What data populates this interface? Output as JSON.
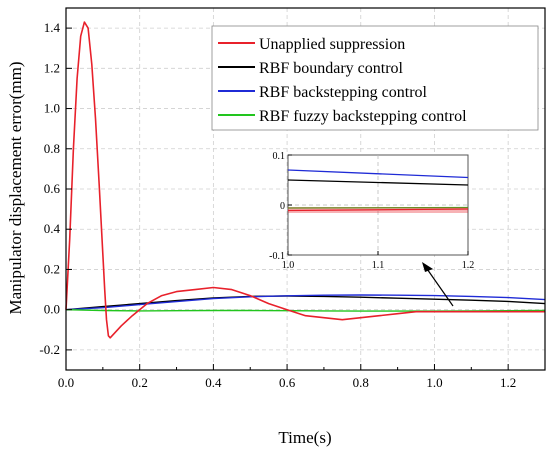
{
  "chart_data": {
    "type": "line",
    "xlabel": "Time(s)",
    "ylabel": "Manipulator displacement error(mm)",
    "xlim": [
      0,
      1.3
    ],
    "ylim": [
      -0.3,
      1.5
    ],
    "x_ticks": [
      "0.0",
      "0.2",
      "0.4",
      "0.6",
      "0.8",
      "1.0",
      "1.2"
    ],
    "y_ticks": [
      "-0.2",
      "0.0",
      "0.2",
      "0.4",
      "0.6",
      "0.8",
      "1.0",
      "1.2",
      "1.4"
    ],
    "grid": true,
    "legend_position": "top-right",
    "series": [
      {
        "name": "Unapplied suppression",
        "color": "#e8212b",
        "x": [
          0.0,
          0.01,
          0.02,
          0.03,
          0.04,
          0.05,
          0.06,
          0.07,
          0.08,
          0.09,
          0.1,
          0.105,
          0.11,
          0.115,
          0.12,
          0.13,
          0.15,
          0.18,
          0.22,
          0.26,
          0.3,
          0.35,
          0.4,
          0.45,
          0.5,
          0.55,
          0.6,
          0.65,
          0.7,
          0.75,
          0.8,
          0.85,
          0.9,
          0.95,
          1.0,
          1.05,
          1.1,
          1.15,
          1.2,
          1.25,
          1.3
        ],
        "y": [
          0.0,
          0.35,
          0.8,
          1.15,
          1.36,
          1.43,
          1.4,
          1.22,
          0.95,
          0.62,
          0.28,
          0.1,
          -0.05,
          -0.13,
          -0.14,
          -0.12,
          -0.08,
          -0.03,
          0.03,
          0.07,
          0.09,
          0.1,
          0.11,
          0.1,
          0.07,
          0.03,
          0.0,
          -0.03,
          -0.04,
          -0.05,
          -0.04,
          -0.03,
          -0.02,
          -0.01,
          -0.01,
          -0.01,
          -0.01,
          -0.01,
          -0.01,
          -0.01,
          -0.01
        ]
      },
      {
        "name": "RBF boundary control",
        "color": "#000000",
        "x": [
          0.0,
          0.1,
          0.2,
          0.3,
          0.4,
          0.5,
          0.6,
          0.7,
          0.8,
          0.9,
          1.0,
          1.1,
          1.2,
          1.3
        ],
        "y": [
          0.0,
          0.015,
          0.03,
          0.045,
          0.058,
          0.066,
          0.068,
          0.066,
          0.062,
          0.057,
          0.052,
          0.047,
          0.041,
          0.03
        ]
      },
      {
        "name": "RBF backstepping control",
        "color": "#1f2bd6",
        "x": [
          0.0,
          0.1,
          0.2,
          0.3,
          0.4,
          0.5,
          0.6,
          0.7,
          0.8,
          0.9,
          1.0,
          1.1,
          1.2,
          1.3
        ],
        "y": [
          0.0,
          0.01,
          0.025,
          0.04,
          0.055,
          0.064,
          0.069,
          0.072,
          0.073,
          0.072,
          0.07,
          0.066,
          0.06,
          0.05
        ]
      },
      {
        "name": "RBF fuzzy backstepping control",
        "color": "#22c51e",
        "x": [
          0.0,
          0.1,
          0.2,
          0.3,
          0.4,
          0.5,
          0.6,
          0.7,
          0.8,
          0.9,
          1.0,
          1.1,
          1.2,
          1.3
        ],
        "y": [
          0.0,
          -0.004,
          -0.006,
          -0.005,
          -0.004,
          -0.004,
          -0.005,
          -0.006,
          -0.007,
          -0.007,
          -0.007,
          -0.006,
          -0.005,
          -0.004
        ]
      }
    ],
    "inset": {
      "xlim": [
        1.0,
        1.2
      ],
      "ylim": [
        -0.1,
        0.1
      ],
      "x_ticks": [
        "1.0",
        "1.1",
        "1.2"
      ],
      "y_ticks": [
        "0.1",
        "0",
        "-0.1"
      ],
      "series": [
        {
          "color": "#000000",
          "x": [
            1.0,
            1.2
          ],
          "y": [
            0.05,
            0.04
          ]
        },
        {
          "color": "#1f2bd6",
          "x": [
            1.0,
            1.2
          ],
          "y": [
            0.07,
            0.055
          ]
        },
        {
          "color": "#22c51e",
          "x": [
            1.0,
            1.2
          ],
          "y": [
            -0.006,
            -0.005
          ]
        },
        {
          "color": "#e8212b",
          "x": [
            1.0,
            1.2
          ],
          "y": [
            -0.011,
            -0.008
          ]
        }
      ]
    }
  }
}
